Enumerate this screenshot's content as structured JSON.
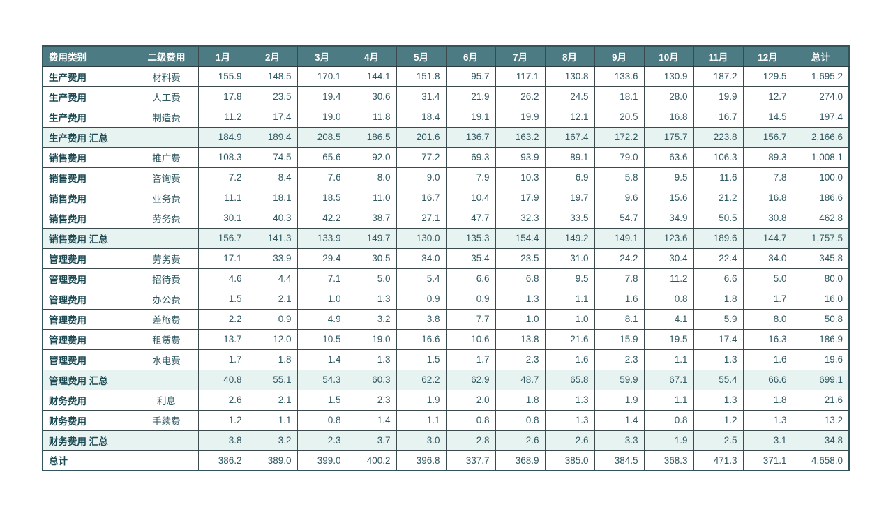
{
  "table": {
    "columns": [
      "费用类别",
      "二级费用",
      "1月",
      "2月",
      "3月",
      "4月",
      "5月",
      "6月",
      "7月",
      "8月",
      "9月",
      "10月",
      "11月",
      "12月",
      "总计"
    ],
    "rows": [
      {
        "type": "data",
        "category": "生产费用",
        "sub": "材料费",
        "values": [
          "155.9",
          "148.5",
          "170.1",
          "144.1",
          "151.8",
          "95.7",
          "117.1",
          "130.8",
          "133.6",
          "130.9",
          "187.2",
          "129.5",
          "1,695.2"
        ]
      },
      {
        "type": "data",
        "category": "生产费用",
        "sub": "人工费",
        "values": [
          "17.8",
          "23.5",
          "19.4",
          "30.6",
          "31.4",
          "21.9",
          "26.2",
          "24.5",
          "18.1",
          "28.0",
          "19.9",
          "12.7",
          "274.0"
        ]
      },
      {
        "type": "data",
        "category": "生产费用",
        "sub": "制造费",
        "values": [
          "11.2",
          "17.4",
          "19.0",
          "11.8",
          "18.4",
          "19.1",
          "19.9",
          "12.1",
          "20.5",
          "16.8",
          "16.7",
          "14.5",
          "197.4"
        ]
      },
      {
        "type": "subtotal",
        "category": "生产费用 汇总",
        "sub": "",
        "values": [
          "184.9",
          "189.4",
          "208.5",
          "186.5",
          "201.6",
          "136.7",
          "163.2",
          "167.4",
          "172.2",
          "175.7",
          "223.8",
          "156.7",
          "2,166.6"
        ]
      },
      {
        "type": "data",
        "category": "销售费用",
        "sub": "推广费",
        "values": [
          "108.3",
          "74.5",
          "65.6",
          "92.0",
          "77.2",
          "69.3",
          "93.9",
          "89.1",
          "79.0",
          "63.6",
          "106.3",
          "89.3",
          "1,008.1"
        ]
      },
      {
        "type": "data",
        "category": "销售费用",
        "sub": "咨询费",
        "values": [
          "7.2",
          "8.4",
          "7.6",
          "8.0",
          "9.0",
          "7.9",
          "10.3",
          "6.9",
          "5.8",
          "9.5",
          "11.6",
          "7.8",
          "100.0"
        ]
      },
      {
        "type": "data",
        "category": "销售费用",
        "sub": "业务费",
        "values": [
          "11.1",
          "18.1",
          "18.5",
          "11.0",
          "16.7",
          "10.4",
          "17.9",
          "19.7",
          "9.6",
          "15.6",
          "21.2",
          "16.8",
          "186.6"
        ]
      },
      {
        "type": "data",
        "category": "销售费用",
        "sub": "劳务费",
        "values": [
          "30.1",
          "40.3",
          "42.2",
          "38.7",
          "27.1",
          "47.7",
          "32.3",
          "33.5",
          "54.7",
          "34.9",
          "50.5",
          "30.8",
          "462.8"
        ]
      },
      {
        "type": "subtotal",
        "category": "销售费用 汇总",
        "sub": "",
        "values": [
          "156.7",
          "141.3",
          "133.9",
          "149.7",
          "130.0",
          "135.3",
          "154.4",
          "149.2",
          "149.1",
          "123.6",
          "189.6",
          "144.7",
          "1,757.5"
        ]
      },
      {
        "type": "data",
        "category": "管理费用",
        "sub": "劳务费",
        "values": [
          "17.1",
          "33.9",
          "29.4",
          "30.5",
          "34.0",
          "35.4",
          "23.5",
          "31.0",
          "24.2",
          "30.4",
          "22.4",
          "34.0",
          "345.8"
        ]
      },
      {
        "type": "data",
        "category": "管理费用",
        "sub": "招待费",
        "values": [
          "4.6",
          "4.4",
          "7.1",
          "5.0",
          "5.4",
          "6.6",
          "6.8",
          "9.5",
          "7.8",
          "11.2",
          "6.6",
          "5.0",
          "80.0"
        ]
      },
      {
        "type": "data",
        "category": "管理费用",
        "sub": "办公费",
        "values": [
          "1.5",
          "2.1",
          "1.0",
          "1.3",
          "0.9",
          "0.9",
          "1.3",
          "1.1",
          "1.6",
          "0.8",
          "1.8",
          "1.7",
          "16.0"
        ]
      },
      {
        "type": "data",
        "category": "管理费用",
        "sub": "差旅费",
        "values": [
          "2.2",
          "0.9",
          "4.9",
          "3.2",
          "3.8",
          "7.7",
          "1.0",
          "1.0",
          "8.1",
          "4.1",
          "5.9",
          "8.0",
          "50.8"
        ]
      },
      {
        "type": "data",
        "category": "管理费用",
        "sub": "租赁费",
        "values": [
          "13.7",
          "12.0",
          "10.5",
          "19.0",
          "16.6",
          "10.6",
          "13.8",
          "21.6",
          "15.9",
          "19.5",
          "17.4",
          "16.3",
          "186.9"
        ]
      },
      {
        "type": "data",
        "category": "管理费用",
        "sub": "水电费",
        "values": [
          "1.7",
          "1.8",
          "1.4",
          "1.3",
          "1.5",
          "1.7",
          "2.3",
          "1.6",
          "2.3",
          "1.1",
          "1.3",
          "1.6",
          "19.6"
        ]
      },
      {
        "type": "subtotal",
        "category": "管理费用 汇总",
        "sub": "",
        "values": [
          "40.8",
          "55.1",
          "54.3",
          "60.3",
          "62.2",
          "62.9",
          "48.7",
          "65.8",
          "59.9",
          "67.1",
          "55.4",
          "66.6",
          "699.1"
        ]
      },
      {
        "type": "data",
        "category": "财务费用",
        "sub": "利息",
        "values": [
          "2.6",
          "2.1",
          "1.5",
          "2.3",
          "1.9",
          "2.0",
          "1.8",
          "1.3",
          "1.9",
          "1.1",
          "1.3",
          "1.8",
          "21.6"
        ]
      },
      {
        "type": "data",
        "category": "财务费用",
        "sub": "手续费",
        "values": [
          "1.2",
          "1.1",
          "0.8",
          "1.4",
          "1.1",
          "0.8",
          "0.8",
          "1.3",
          "1.4",
          "0.8",
          "1.2",
          "1.3",
          "13.2"
        ]
      },
      {
        "type": "subtotal",
        "category": "财务费用 汇总",
        "sub": "",
        "values": [
          "3.8",
          "3.2",
          "2.3",
          "3.7",
          "3.0",
          "2.8",
          "2.6",
          "2.6",
          "3.3",
          "1.9",
          "2.5",
          "3.1",
          "34.8"
        ]
      },
      {
        "type": "grandtotal",
        "category": "总计",
        "sub": "",
        "values": [
          "386.2",
          "389.0",
          "399.0",
          "400.2",
          "396.8",
          "337.7",
          "368.9",
          "385.0",
          "384.5",
          "368.3",
          "471.3",
          "371.1",
          "4,658.0"
        ]
      }
    ],
    "colors": {
      "header_bg": "#4d7b83",
      "header_text": "#ffffff",
      "subtotal_bg": "#e7f3f1",
      "category_text": "#1d4a53",
      "value_text": "#2f5861",
      "grid": "#3d4a4d",
      "outer_border": "#33545c"
    }
  }
}
